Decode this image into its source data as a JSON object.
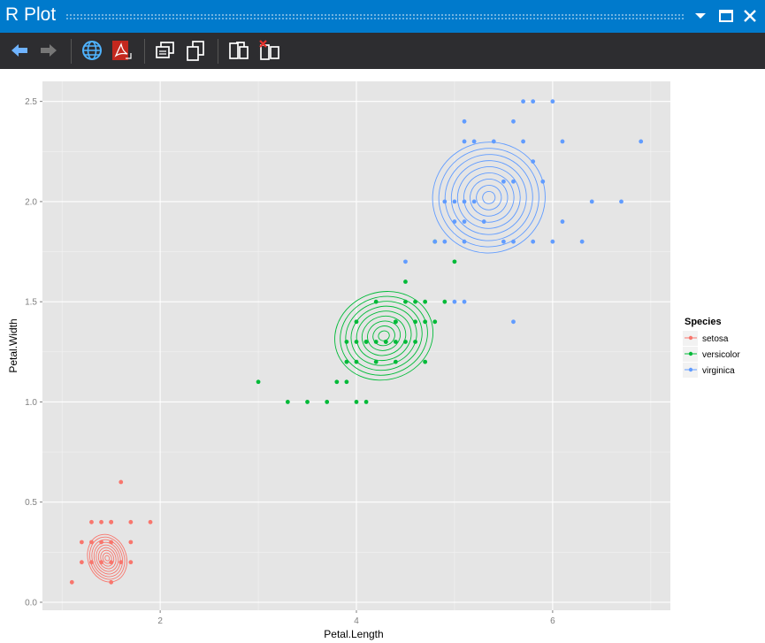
{
  "window": {
    "title": "R Plot"
  },
  "toolbar": {
    "buttons": [
      {
        "name": "back-arrow-icon"
      },
      {
        "name": "forward-arrow-icon"
      },
      {
        "name": "globe-icon"
      },
      {
        "name": "pdf-icon"
      },
      {
        "name": "copy-plot-icon"
      },
      {
        "name": "copy-alt-icon"
      },
      {
        "name": "export-icon"
      },
      {
        "name": "remove-plot-icon"
      }
    ]
  },
  "colors": {
    "titlebar": "#007acc",
    "toolbar": "#2d2d30",
    "panel": "#e5e5e5",
    "setosa": "#f8766d",
    "versicolor": "#00ba38",
    "virginica": "#619cff"
  },
  "chart_data": {
    "type": "scatter",
    "xlabel": "Petal.Length",
    "ylabel": "Petal.Width",
    "xlim": [
      0.8,
      7.2
    ],
    "ylim": [
      -0.04,
      2.6
    ],
    "x_ticks": [
      2,
      4,
      6
    ],
    "y_ticks": [
      "0.0",
      "0.5",
      "1.0",
      "1.5",
      "2.0",
      "2.5"
    ],
    "grid": true,
    "legend": {
      "title": "Species",
      "position": "right",
      "entries": [
        "setosa",
        "versicolor",
        "virginica"
      ]
    },
    "series": [
      {
        "name": "setosa",
        "color": "#f8766d",
        "points": [
          [
            1.1,
            0.1
          ],
          [
            1.5,
            0.1
          ],
          [
            1.2,
            0.2
          ],
          [
            1.3,
            0.2
          ],
          [
            1.4,
            0.2
          ],
          [
            1.5,
            0.2
          ],
          [
            1.6,
            0.2
          ],
          [
            1.7,
            0.2
          ],
          [
            1.2,
            0.3
          ],
          [
            1.3,
            0.3
          ],
          [
            1.4,
            0.3
          ],
          [
            1.5,
            0.3
          ],
          [
            1.7,
            0.3
          ],
          [
            1.3,
            0.4
          ],
          [
            1.4,
            0.4
          ],
          [
            1.5,
            0.4
          ],
          [
            1.7,
            0.4
          ],
          [
            1.9,
            0.4
          ],
          [
            1.5,
            0.4
          ],
          [
            1.6,
            0.6
          ]
        ],
        "density_center": [
          1.46,
          0.22
        ],
        "density_spread": [
          0.17,
          0.105
        ]
      },
      {
        "name": "versicolor",
        "color": "#00ba38",
        "points": [
          [
            3.0,
            1.1
          ],
          [
            3.3,
            1.0
          ],
          [
            3.5,
            1.0
          ],
          [
            3.7,
            1.0
          ],
          [
            4.0,
            1.0
          ],
          [
            3.8,
            1.1
          ],
          [
            3.9,
            1.1
          ],
          [
            3.9,
            1.2
          ],
          [
            4.0,
            1.2
          ],
          [
            4.2,
            1.2
          ],
          [
            4.4,
            1.2
          ],
          [
            3.9,
            1.3
          ],
          [
            4.0,
            1.3
          ],
          [
            4.1,
            1.3
          ],
          [
            4.2,
            1.3
          ],
          [
            4.3,
            1.3
          ],
          [
            4.4,
            1.3
          ],
          [
            4.5,
            1.3
          ],
          [
            4.6,
            1.3
          ],
          [
            4.0,
            1.4
          ],
          [
            4.4,
            1.4
          ],
          [
            4.6,
            1.4
          ],
          [
            4.7,
            1.4
          ],
          [
            4.2,
            1.5
          ],
          [
            4.5,
            1.5
          ],
          [
            4.6,
            1.5
          ],
          [
            4.7,
            1.5
          ],
          [
            4.9,
            1.5
          ],
          [
            4.5,
            1.6
          ],
          [
            5.0,
            1.7
          ],
          [
            4.1,
            1.0
          ],
          [
            4.7,
            1.2
          ],
          [
            4.8,
            1.4
          ],
          [
            4.8,
            1.8
          ],
          [
            4.4,
            1.4
          ],
          [
            4.1,
            1.3
          ],
          [
            4.3,
            1.3
          ]
        ],
        "density_center": [
          4.28,
          1.33
        ],
        "density_spread": [
          0.44,
          0.19
        ]
      },
      {
        "name": "virginica",
        "color": "#619cff",
        "points": [
          [
            4.5,
            1.7
          ],
          [
            4.8,
            1.8
          ],
          [
            4.9,
            1.8
          ],
          [
            5.1,
            1.8
          ],
          [
            5.5,
            1.8
          ],
          [
            5.6,
            1.8
          ],
          [
            5.8,
            1.8
          ],
          [
            6.0,
            1.8
          ],
          [
            6.3,
            1.8
          ],
          [
            4.9,
            2.0
          ],
          [
            5.1,
            2.0
          ],
          [
            5.2,
            2.0
          ],
          [
            5.0,
            2.0
          ],
          [
            5.1,
            1.9
          ],
          [
            5.0,
            1.9
          ],
          [
            5.3,
            1.9
          ],
          [
            6.1,
            1.9
          ],
          [
            6.4,
            2.0
          ],
          [
            6.7,
            2.0
          ],
          [
            5.5,
            2.1
          ],
          [
            5.6,
            2.1
          ],
          [
            5.9,
            2.1
          ],
          [
            5.8,
            2.2
          ],
          [
            5.1,
            2.3
          ],
          [
            5.2,
            2.3
          ],
          [
            5.4,
            2.3
          ],
          [
            5.7,
            2.3
          ],
          [
            6.1,
            2.3
          ],
          [
            6.9,
            2.3
          ],
          [
            5.6,
            2.4
          ],
          [
            5.1,
            2.4
          ],
          [
            5.7,
            2.5
          ],
          [
            6.0,
            2.5
          ],
          [
            5.8,
            2.5
          ],
          [
            5.6,
            1.4
          ],
          [
            5.0,
            1.5
          ],
          [
            5.1,
            1.5
          ]
        ],
        "density_center": [
          5.35,
          2.02
        ],
        "density_spread": [
          0.5,
          0.24
        ]
      }
    ]
  }
}
